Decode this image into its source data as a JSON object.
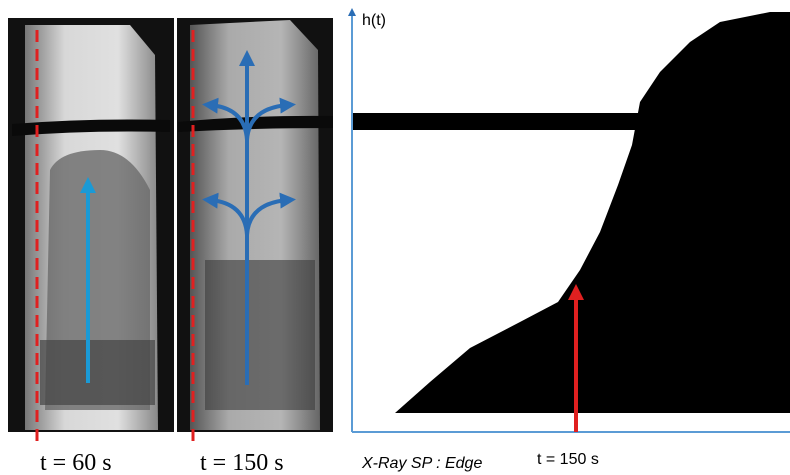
{
  "left_panel": {
    "labels": [
      "t = 60 s",
      "t = 150 s"
    ]
  },
  "right_panel": {
    "axis_label": "h(t)",
    "caption": "X-Ray SP : Edge",
    "time_label": "t = 150 s"
  }
}
